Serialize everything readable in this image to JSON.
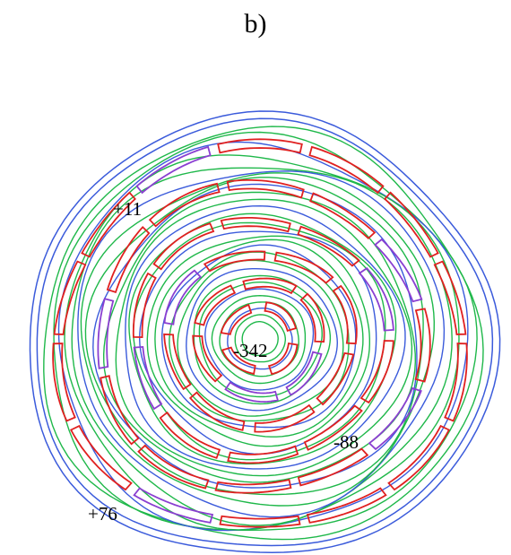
{
  "figure": {
    "panel_label": "b)",
    "annotations": [
      {
        "id": "a-plus11",
        "text": "+11"
      },
      {
        "id": "a-minus342",
        "text": "-342"
      },
      {
        "id": "a-minus88",
        "text": "-88"
      },
      {
        "id": "a-plus76",
        "text": "+76"
      }
    ]
  },
  "colors": {
    "outline_blue": "#3b5bdb",
    "contour_green": "#1fb84a",
    "segment_red": "#e02020",
    "segment_purple": "#8a3fd1",
    "background": "#ffffff",
    "text": "#000000"
  }
}
